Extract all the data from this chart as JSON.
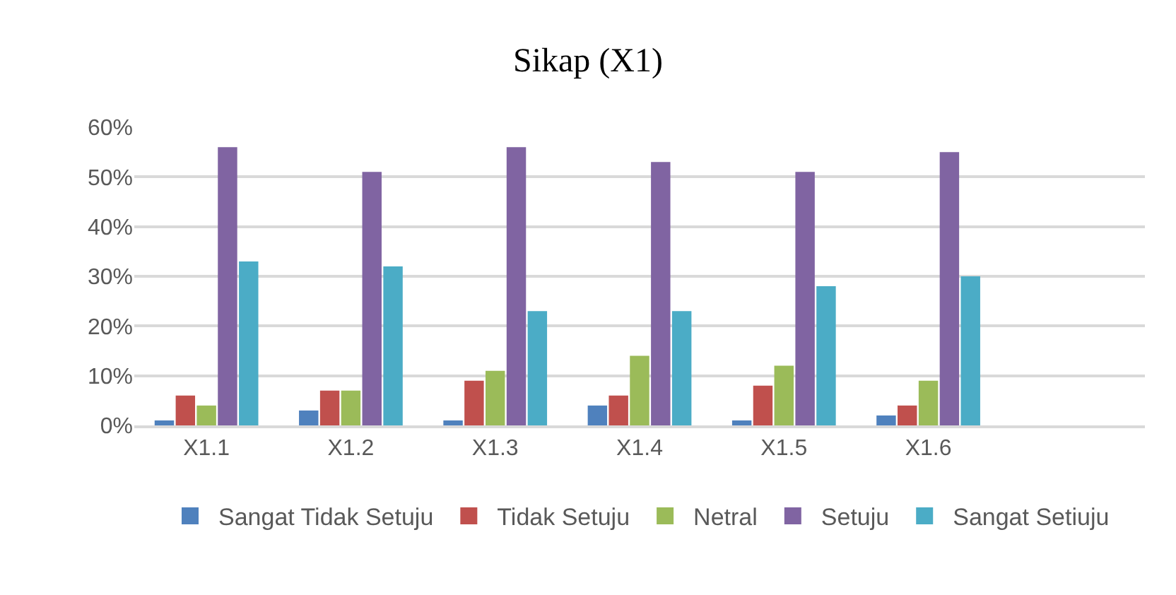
{
  "chart_data": {
    "type": "bar",
    "title": "Sikap (X1)",
    "categories": [
      "X1.1",
      "X1.2",
      "X1.3",
      "X1.4",
      "X1.5",
      "X1.6",
      null
    ],
    "series": [
      {
        "name": "Sangat Tidak Setuju",
        "color": "#4f81bd",
        "values": [
          1,
          3,
          1,
          4,
          1,
          2,
          null
        ]
      },
      {
        "name": "Tidak Setuju",
        "color": "#c0504d",
        "values": [
          6,
          7,
          9,
          6,
          8,
          4,
          null
        ]
      },
      {
        "name": "Netral",
        "color": "#9bbb59",
        "values": [
          4,
          7,
          11,
          14,
          12,
          9,
          null
        ]
      },
      {
        "name": "Setuju",
        "color": "#8064a2",
        "values": [
          56,
          51,
          56,
          53,
          51,
          55,
          null
        ]
      },
      {
        "name": "Sangat Setiuju",
        "color": "#4bacc6",
        "values": [
          33,
          32,
          23,
          23,
          28,
          30,
          null
        ]
      }
    ],
    "ylim": [
      0,
      60
    ],
    "yticks": [
      {
        "value": 0,
        "label": "0%"
      },
      {
        "value": 10,
        "label": "10%"
      },
      {
        "value": 20,
        "label": "20%"
      },
      {
        "value": 30,
        "label": "30%"
      },
      {
        "value": 40,
        "label": "40%"
      },
      {
        "value": 50,
        "label": "50%"
      },
      {
        "value": 60,
        "label": "60%"
      }
    ],
    "grid": "y",
    "legend": "bottom"
  }
}
